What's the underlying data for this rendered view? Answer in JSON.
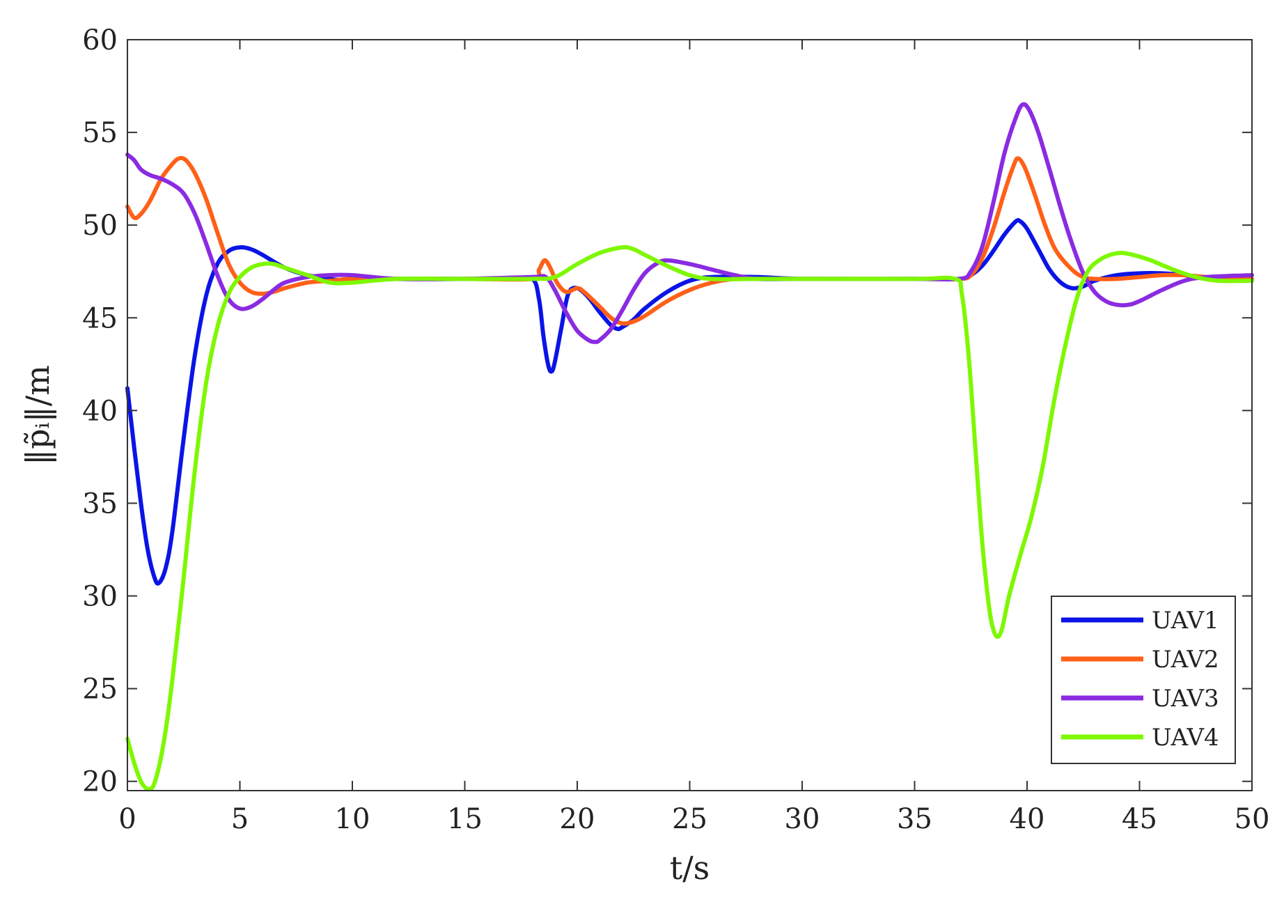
{
  "chart_data": {
    "type": "line",
    "title": "",
    "xlabel": "t/s",
    "ylabel": "‖p̃ᵢ‖/m",
    "xlim": [
      0,
      50
    ],
    "ylim": [
      19.5,
      60
    ],
    "xticks": [
      0,
      5,
      10,
      15,
      20,
      25,
      30,
      35,
      40,
      45,
      50
    ],
    "yticks": [
      20,
      25,
      30,
      35,
      40,
      45,
      50,
      55,
      60
    ],
    "grid": false,
    "legend_position": "bottom-right",
    "series": [
      {
        "name": "UAV1",
        "color": "#0a14e6",
        "points": [
          [
            0,
            41.2
          ],
          [
            0.3,
            38
          ],
          [
            0.6,
            35
          ],
          [
            0.9,
            32.5
          ],
          [
            1.2,
            31
          ],
          [
            1.4,
            30.7
          ],
          [
            1.7,
            31.5
          ],
          [
            2,
            33.5
          ],
          [
            2.5,
            38.5
          ],
          [
            3,
            43
          ],
          [
            3.5,
            46.2
          ],
          [
            4,
            47.9
          ],
          [
            4.5,
            48.6
          ],
          [
            5,
            48.8
          ],
          [
            5.5,
            48.7
          ],
          [
            6,
            48.4
          ],
          [
            7,
            47.7
          ],
          [
            8,
            47.3
          ],
          [
            9,
            47.1
          ],
          [
            10,
            47.0
          ],
          [
            12,
            47.1
          ],
          [
            15,
            47.1
          ],
          [
            17,
            47.1
          ],
          [
            18,
            47.1
          ],
          [
            18.3,
            46
          ],
          [
            18.5,
            44
          ],
          [
            18.7,
            42.5
          ],
          [
            18.85,
            42.1
          ],
          [
            19,
            42.6
          ],
          [
            19.3,
            44.5
          ],
          [
            19.6,
            46.3
          ],
          [
            20,
            46.6
          ],
          [
            20.5,
            46.1
          ],
          [
            21,
            45.3
          ],
          [
            21.5,
            44.6
          ],
          [
            21.8,
            44.4
          ],
          [
            22,
            44.5
          ],
          [
            22.5,
            44.9
          ],
          [
            23,
            45.5
          ],
          [
            24,
            46.4
          ],
          [
            25,
            47
          ],
          [
            26,
            47.2
          ],
          [
            28,
            47.2
          ],
          [
            30,
            47.1
          ],
          [
            35,
            47.1
          ],
          [
            37,
            47.1
          ],
          [
            37.5,
            47.3
          ],
          [
            38,
            47.8
          ],
          [
            38.5,
            48.6
          ],
          [
            39,
            49.5
          ],
          [
            39.5,
            50.2
          ],
          [
            39.7,
            50.2
          ],
          [
            40,
            49.8
          ],
          [
            40.5,
            48.7
          ],
          [
            41,
            47.6
          ],
          [
            41.5,
            46.9
          ],
          [
            42,
            46.6
          ],
          [
            42.5,
            46.7
          ],
          [
            43,
            47
          ],
          [
            44,
            47.3
          ],
          [
            45,
            47.4
          ],
          [
            46,
            47.4
          ],
          [
            47,
            47.3
          ],
          [
            48,
            47.1
          ],
          [
            50,
            47.0
          ]
        ]
      },
      {
        "name": "UAV2",
        "color": "#ff6018",
        "points": [
          [
            0,
            51
          ],
          [
            0.3,
            50.4
          ],
          [
            0.6,
            50.6
          ],
          [
            1,
            51.3
          ],
          [
            1.5,
            52.5
          ],
          [
            2,
            53.3
          ],
          [
            2.3,
            53.6
          ],
          [
            2.6,
            53.5
          ],
          [
            3,
            52.8
          ],
          [
            3.5,
            51.4
          ],
          [
            4,
            49.6
          ],
          [
            4.5,
            47.9
          ],
          [
            5,
            46.9
          ],
          [
            5.5,
            46.4
          ],
          [
            6,
            46.3
          ],
          [
            6.5,
            46.4
          ],
          [
            7,
            46.6
          ],
          [
            8,
            46.9
          ],
          [
            9,
            47
          ],
          [
            10,
            47.1
          ],
          [
            12,
            47.1
          ],
          [
            15,
            47.1
          ],
          [
            18,
            47.1
          ],
          [
            18.3,
            47.6
          ],
          [
            18.55,
            48.1
          ],
          [
            18.8,
            47.7
          ],
          [
            19.1,
            46.9
          ],
          [
            19.5,
            46.4
          ],
          [
            20,
            46.6
          ],
          [
            20.3,
            46.4
          ],
          [
            21,
            45.6
          ],
          [
            21.5,
            45
          ],
          [
            22,
            44.7
          ],
          [
            22.5,
            44.8
          ],
          [
            23,
            45.1
          ],
          [
            24,
            45.9
          ],
          [
            25,
            46.5
          ],
          [
            26,
            46.9
          ],
          [
            27,
            47.1
          ],
          [
            28,
            47.1
          ],
          [
            30,
            47.1
          ],
          [
            35,
            47.1
          ],
          [
            37,
            47.1
          ],
          [
            37.5,
            47.3
          ],
          [
            38,
            48.2
          ],
          [
            38.5,
            49.8
          ],
          [
            39,
            51.8
          ],
          [
            39.4,
            53.2
          ],
          [
            39.6,
            53.6
          ],
          [
            39.9,
            53.1
          ],
          [
            40.3,
            51.8
          ],
          [
            40.8,
            50
          ],
          [
            41.3,
            48.6
          ],
          [
            42,
            47.6
          ],
          [
            42.5,
            47.2
          ],
          [
            43,
            47.1
          ],
          [
            44,
            47.1
          ],
          [
            45,
            47.2
          ],
          [
            46,
            47.3
          ],
          [
            47,
            47.3
          ],
          [
            48,
            47.2
          ],
          [
            50,
            47.1
          ]
        ]
      },
      {
        "name": "UAV3",
        "color": "#8a2be2",
        "points": [
          [
            0,
            53.8
          ],
          [
            0.3,
            53.5
          ],
          [
            0.6,
            53
          ],
          [
            1,
            52.7
          ],
          [
            1.5,
            52.5
          ],
          [
            2,
            52.2
          ],
          [
            2.5,
            51.7
          ],
          [
            3,
            50.6
          ],
          [
            3.5,
            49
          ],
          [
            4,
            47.3
          ],
          [
            4.5,
            46
          ],
          [
            5,
            45.5
          ],
          [
            5.5,
            45.6
          ],
          [
            6,
            46
          ],
          [
            6.5,
            46.5
          ],
          [
            7,
            46.9
          ],
          [
            8,
            47.2
          ],
          [
            9,
            47.3
          ],
          [
            10,
            47.3
          ],
          [
            12,
            47.1
          ],
          [
            15,
            47.1
          ],
          [
            18,
            47.2
          ],
          [
            18.6,
            47.2
          ],
          [
            19,
            46.5
          ],
          [
            19.5,
            45.3
          ],
          [
            20,
            44.3
          ],
          [
            20.5,
            43.8
          ],
          [
            20.8,
            43.7
          ],
          [
            21,
            43.8
          ],
          [
            21.5,
            44.4
          ],
          [
            22,
            45.4
          ],
          [
            22.5,
            46.5
          ],
          [
            23,
            47.4
          ],
          [
            23.5,
            47.9
          ],
          [
            24,
            48.1
          ],
          [
            25,
            47.9
          ],
          [
            26,
            47.6
          ],
          [
            27,
            47.3
          ],
          [
            28,
            47.1
          ],
          [
            30,
            47.1
          ],
          [
            35,
            47.1
          ],
          [
            37,
            47.1
          ],
          [
            37.5,
            47.5
          ],
          [
            38,
            48.8
          ],
          [
            38.5,
            51.2
          ],
          [
            39,
            53.9
          ],
          [
            39.5,
            55.8
          ],
          [
            39.8,
            56.5
          ],
          [
            40.1,
            56.2
          ],
          [
            40.5,
            55
          ],
          [
            41,
            53
          ],
          [
            41.5,
            50.9
          ],
          [
            42,
            49
          ],
          [
            42.5,
            47.4
          ],
          [
            43,
            46.4
          ],
          [
            43.5,
            45.9
          ],
          [
            44,
            45.7
          ],
          [
            44.5,
            45.7
          ],
          [
            45,
            45.9
          ],
          [
            46,
            46.5
          ],
          [
            47,
            47
          ],
          [
            48,
            47.2
          ],
          [
            50,
            47.3
          ]
        ]
      },
      {
        "name": "UAV4",
        "color": "#7ef800",
        "points": [
          [
            0,
            22.3
          ],
          [
            0.3,
            21
          ],
          [
            0.6,
            20
          ],
          [
            0.9,
            19.6
          ],
          [
            1.2,
            19.9
          ],
          [
            1.6,
            22
          ],
          [
            2,
            25.5
          ],
          [
            2.5,
            31
          ],
          [
            3,
            36.8
          ],
          [
            3.5,
            41.5
          ],
          [
            4,
            44.5
          ],
          [
            4.5,
            46.3
          ],
          [
            5,
            47.2
          ],
          [
            5.5,
            47.7
          ],
          [
            6,
            47.9
          ],
          [
            6.5,
            47.9
          ],
          [
            7,
            47.7
          ],
          [
            8,
            47.3
          ],
          [
            9,
            46.9
          ],
          [
            10,
            46.9
          ],
          [
            12,
            47.1
          ],
          [
            15,
            47.1
          ],
          [
            18,
            47.1
          ],
          [
            19,
            47.2
          ],
          [
            20,
            47.9
          ],
          [
            21,
            48.5
          ],
          [
            22,
            48.8
          ],
          [
            22.5,
            48.7
          ],
          [
            23,
            48.4
          ],
          [
            24,
            47.8
          ],
          [
            25,
            47.3
          ],
          [
            26,
            47.1
          ],
          [
            28,
            47.1
          ],
          [
            30,
            47.1
          ],
          [
            35,
            47.1
          ],
          [
            36.8,
            47.1
          ],
          [
            37.1,
            46.3
          ],
          [
            37.4,
            43
          ],
          [
            37.7,
            38
          ],
          [
            38,
            33
          ],
          [
            38.3,
            29.5
          ],
          [
            38.5,
            28.2
          ],
          [
            38.7,
            27.8
          ],
          [
            38.9,
            28.3
          ],
          [
            39.2,
            30
          ],
          [
            39.7,
            32.2
          ],
          [
            40.2,
            34.3
          ],
          [
            40.7,
            37
          ],
          [
            41.2,
            40.5
          ],
          [
            41.7,
            43.5
          ],
          [
            42.2,
            46
          ],
          [
            42.7,
            47.5
          ],
          [
            43.2,
            48.1
          ],
          [
            43.7,
            48.4
          ],
          [
            44.2,
            48.5
          ],
          [
            44.7,
            48.4
          ],
          [
            45.5,
            48.1
          ],
          [
            46.5,
            47.6
          ],
          [
            47.5,
            47.2
          ],
          [
            48.5,
            47.0
          ],
          [
            50,
            47.0
          ]
        ]
      }
    ]
  }
}
